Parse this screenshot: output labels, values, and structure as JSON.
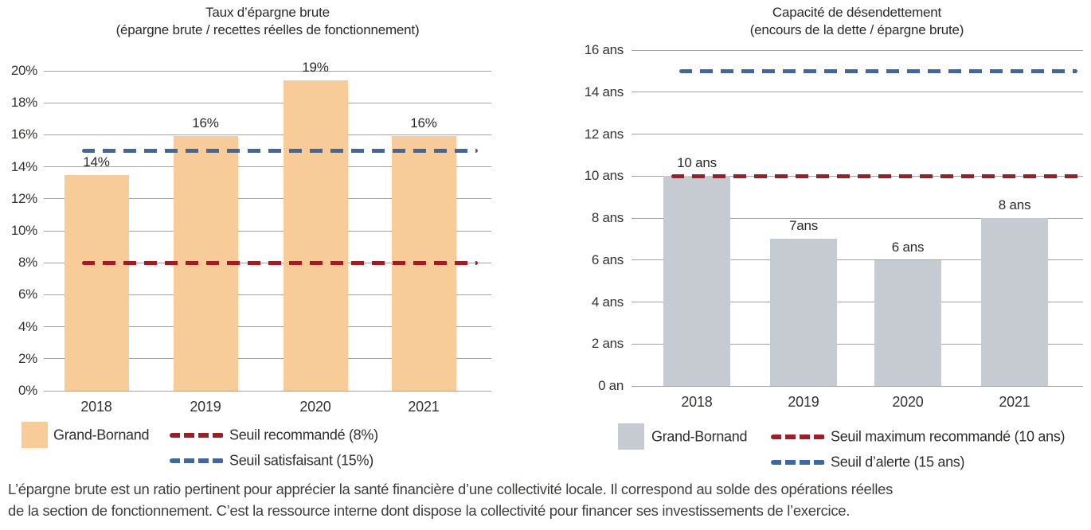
{
  "colors": {
    "bar_orange": "#f8cc99",
    "bar_gray": "#c6cbd1",
    "threshold_red": "#a01e23",
    "threshold_blue": "#3c69a5",
    "gridline": "#a3a3a3",
    "text": "#2a2a28"
  },
  "chart_data": [
    {
      "type": "bar",
      "title": "Taux d’épargne brute",
      "subtitle": "(épargne brute / recettes réelles de fonctionnement)",
      "categories": [
        "2018",
        "2019",
        "2020",
        "2021"
      ],
      "values": [
        13.5,
        15.9,
        19.4,
        15.9
      ],
      "value_labels": [
        "14%",
        "16%",
        "19%",
        "16%"
      ],
      "ylim": [
        0,
        20
      ],
      "ytick_step": 2,
      "ytick_labels": [
        "0%",
        "2%",
        "4%",
        "6%",
        "8%",
        "10%",
        "12%",
        "14%",
        "16%",
        "18%",
        "20%"
      ],
      "grid": true,
      "legend_position": "bottom",
      "bar_color": "#f8cc99",
      "series_legend_label": "Grand-Bornand",
      "thresholds": [
        {
          "value": 8,
          "color": "#a01e23",
          "label": "Seuil recommandé (8%)"
        },
        {
          "value": 15,
          "color": "#3c69a5",
          "label": "Seuil satisfaisant (15%)"
        }
      ]
    },
    {
      "type": "bar",
      "title": "Capacité de désendettement",
      "subtitle": "(encours de la dette / épargne brute)",
      "categories": [
        "2018",
        "2019",
        "2020",
        "2021"
      ],
      "values": [
        10,
        7,
        6,
        8
      ],
      "value_labels": [
        "10 ans",
        "7ans",
        "6 ans",
        "8 ans"
      ],
      "ylim": [
        0,
        16
      ],
      "ytick_step": 2,
      "ytick_labels": [
        "0 an",
        "2 ans",
        "4 ans",
        "6 ans",
        "8 ans",
        "10 ans",
        "12 ans",
        "14 ans",
        "16 ans"
      ],
      "grid": true,
      "legend_position": "bottom",
      "bar_color": "#c6cbd1",
      "series_legend_label": "Grand-Bornand",
      "thresholds": [
        {
          "value": 10,
          "color": "#a01e23",
          "label": "Seuil maximum recommandé (10 ans)"
        },
        {
          "value": 15,
          "color": "#3c69a5",
          "label": "Seuil d’alerte (15 ans)"
        }
      ]
    }
  ],
  "footer": {
    "line1": "L’épargne brute est un ratio pertinent pour apprécier la santé financière d’une collectivité locale. Il correspond au solde des opérations réelles",
    "line2": "de la section de fonctionnement. C’est la ressource interne dont dispose la collectivité pour financer ses investissements de l’exercice."
  }
}
